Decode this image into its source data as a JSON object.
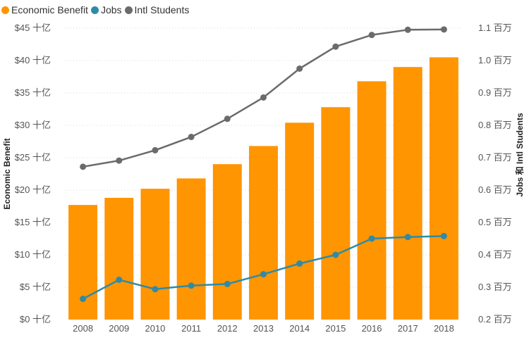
{
  "chart_data": {
    "type": "bar+line",
    "categories": [
      "2008",
      "2009",
      "2010",
      "2011",
      "2012",
      "2013",
      "2014",
      "2015",
      "2016",
      "2017",
      "2018"
    ],
    "series": [
      {
        "name": "Economic Benefit",
        "type": "bar",
        "axis": "left",
        "color": "#FF9500",
        "values": [
          17.7,
          18.8,
          20.2,
          21.8,
          24.0,
          26.8,
          30.4,
          32.8,
          36.8,
          39.0,
          40.5
        ]
      },
      {
        "name": "Jobs",
        "type": "line",
        "axis": "right",
        "color": "#2E8BA8",
        "values": [
          0.264,
          0.323,
          0.294,
          0.305,
          0.31,
          0.34,
          0.373,
          0.4,
          0.45,
          0.455,
          0.458
        ]
      },
      {
        "name": "Intl Students",
        "type": "line",
        "axis": "right",
        "color": "#6B6B6B",
        "values": [
          0.672,
          0.691,
          0.723,
          0.764,
          0.82,
          0.886,
          0.975,
          1.043,
          1.079,
          1.095,
          1.096
        ]
      }
    ],
    "y_left": {
      "label": "Economic Benefit",
      "ylim": [
        0,
        45
      ],
      "ticks": [
        0,
        5,
        10,
        15,
        20,
        25,
        30,
        35,
        40,
        45
      ],
      "tick_labels": [
        "$0 十亿",
        "$5 十亿",
        "$10 十亿",
        "$15 十亿",
        "$20 十亿",
        "$25 十亿",
        "$30 十亿",
        "$35 十亿",
        "$40 十亿",
        "$45 十亿"
      ]
    },
    "y_right": {
      "label": "Jobs 和 Intl Students",
      "ylim": [
        0.2,
        1.1
      ],
      "ticks": [
        0.2,
        0.3,
        0.4,
        0.5,
        0.6,
        0.7,
        0.8,
        0.9,
        1.0,
        1.1
      ],
      "tick_labels": [
        "0.2 百万",
        "0.3 百万",
        "0.4 百万",
        "0.5 百万",
        "0.6 百万",
        "0.7 百万",
        "0.8 百万",
        "0.9 百万",
        "1.0 百万",
        "1.1 百万"
      ]
    },
    "grid": true,
    "legend_position": "top-left"
  }
}
